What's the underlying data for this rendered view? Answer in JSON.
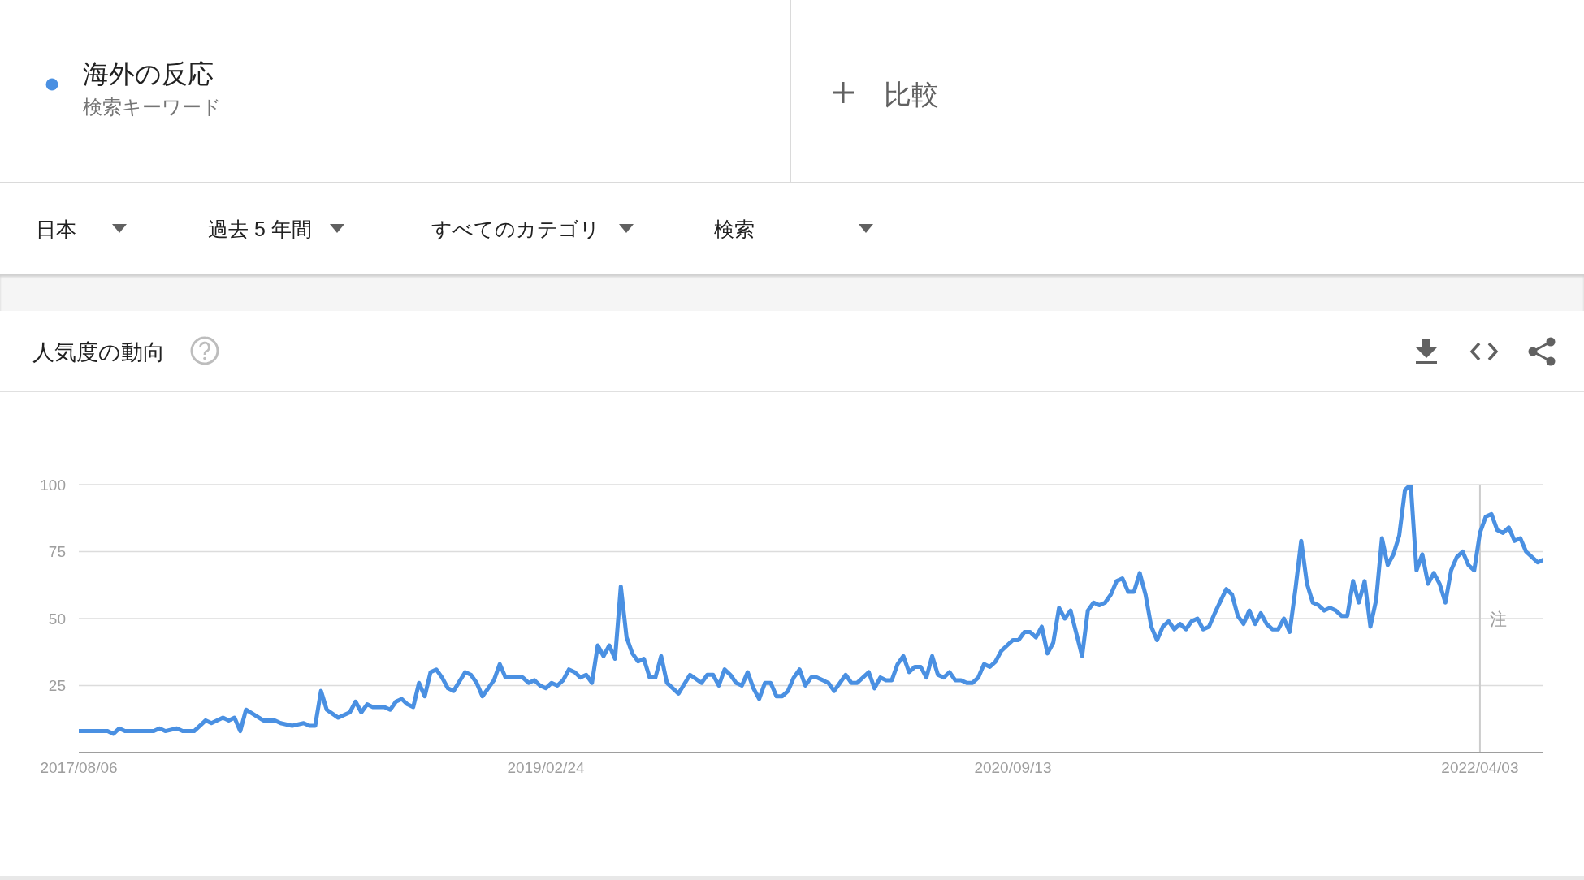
{
  "chart_data": {
    "type": "line",
    "title": "人気度の動向",
    "annotations": [
      "検索キーワード",
      "比較",
      "日本",
      "過去 5 年間",
      "すべてのカテゴリ",
      "検索"
    ],
    "x": [
      "2017-08-06",
      "2017-09-10",
      "2017-09-17",
      "2017-09-24",
      "2017-10-01",
      "2017-11-05",
      "2017-11-12",
      "2017-11-19",
      "2017-12-03",
      "2017-12-10",
      "2017-12-24",
      "2018-01-07",
      "2018-01-14",
      "2018-01-28",
      "2018-02-04",
      "2018-02-11",
      "2018-02-18",
      "2018-02-25",
      "2018-03-18",
      "2018-04-01",
      "2018-04-08",
      "2018-04-22",
      "2018-05-06",
      "2018-05-13",
      "2018-05-20",
      "2018-05-27",
      "2018-06-03",
      "2018-06-17",
      "2018-07-01",
      "2018-07-08",
      "2018-07-15",
      "2018-07-22",
      "2018-07-29",
      "2018-08-12",
      "2018-08-19",
      "2018-08-26",
      "2018-09-02",
      "2018-09-09",
      "2018-09-16",
      "2018-09-23",
      "2018-09-30",
      "2018-10-07",
      "2018-10-14",
      "2018-10-21",
      "2018-10-28",
      "2018-11-04",
      "2018-11-18",
      "2018-11-25",
      "2018-12-02",
      "2018-12-09",
      "2018-12-23",
      "2018-12-30",
      "2019-01-06",
      "2019-01-13",
      "2019-01-20",
      "2019-01-27",
      "2019-02-03",
      "2019-02-10",
      "2019-02-17",
      "2019-02-24",
      "2019-03-03",
      "2019-03-10",
      "2019-03-17",
      "2019-03-24",
      "2019-03-31",
      "2019-04-07",
      "2019-04-14",
      "2019-04-21",
      "2019-04-28",
      "2019-05-05",
      "2019-05-12",
      "2019-05-19",
      "2019-05-26",
      "2019-06-02",
      "2019-06-09",
      "2019-06-16",
      "2019-06-23",
      "2019-06-30",
      "2019-07-07",
      "2019-07-14",
      "2019-07-21",
      "2019-08-04",
      "2019-08-18",
      "2019-09-01",
      "2019-09-08",
      "2019-09-15",
      "2019-09-22",
      "2019-09-29",
      "2019-10-06",
      "2019-10-13",
      "2019-10-20",
      "2019-10-27",
      "2019-11-03",
      "2019-11-10",
      "2019-11-17",
      "2019-11-24",
      "2019-12-01",
      "2019-12-08",
      "2019-12-15",
      "2019-12-22",
      "2019-12-29",
      "2020-01-05",
      "2020-01-12",
      "2020-01-19",
      "2020-02-02",
      "2020-02-09",
      "2020-02-16",
      "2020-02-23",
      "2020-03-01",
      "2020-03-08",
      "2020-03-22",
      "2020-03-29",
      "2020-04-05",
      "2020-04-12",
      "2020-04-19",
      "2020-04-26",
      "2020-05-03",
      "2020-05-10",
      "2020-05-17",
      "2020-05-24",
      "2020-05-31",
      "2020-06-07",
      "2020-06-14",
      "2020-06-21",
      "2020-06-28",
      "2020-07-05",
      "2020-07-12",
      "2020-07-19",
      "2020-07-26",
      "2020-08-02",
      "2020-08-09",
      "2020-08-16",
      "2020-08-23",
      "2020-08-30",
      "2020-09-06",
      "2020-09-13",
      "2020-09-20",
      "2020-09-27",
      "2020-10-04",
      "2020-10-11",
      "2020-10-18",
      "2020-10-25",
      "2020-11-01",
      "2020-11-08",
      "2020-11-15",
      "2020-11-22",
      "2020-12-06",
      "2020-12-13",
      "2020-12-20",
      "2020-12-27",
      "2021-01-03",
      "2021-01-10",
      "2021-01-17",
      "2021-01-24",
      "2021-01-31",
      "2021-02-07",
      "2021-02-14",
      "2021-02-21",
      "2021-02-28",
      "2021-03-07",
      "2021-03-14",
      "2021-03-21",
      "2021-03-28",
      "2021-04-04",
      "2021-04-11",
      "2021-04-18",
      "2021-04-25",
      "2021-05-02",
      "2021-05-09",
      "2021-05-16",
      "2021-05-30",
      "2021-06-06",
      "2021-06-13",
      "2021-06-20",
      "2021-06-27",
      "2021-07-04",
      "2021-07-11",
      "2021-07-18",
      "2021-07-25",
      "2021-08-01",
      "2021-08-08",
      "2021-08-15",
      "2021-08-22",
      "2021-08-29",
      "2021-09-05",
      "2021-09-12",
      "2021-09-19",
      "2021-09-26",
      "2021-10-03",
      "2021-10-10",
      "2021-10-17",
      "2021-10-24",
      "2021-10-31",
      "2021-11-07",
      "2021-11-14",
      "2021-11-21",
      "2021-11-28",
      "2021-12-05",
      "2021-12-12",
      "2021-12-19",
      "2021-12-26",
      "2022-01-02",
      "2022-01-09",
      "2022-01-16",
      "2022-01-23",
      "2022-01-30",
      "2022-02-06",
      "2022-02-13",
      "2022-02-20",
      "2022-02-27",
      "2022-03-06",
      "2022-03-13",
      "2022-03-20",
      "2022-03-27",
      "2022-04-03",
      "2022-04-10",
      "2022-04-17",
      "2022-04-24",
      "2022-05-01",
      "2022-05-08",
      "2022-05-15",
      "2022-05-22",
      "2022-05-29",
      "2022-06-12",
      "2022-06-19"
    ],
    "series": [
      {
        "name": "海外の反応",
        "color": "#4a90e2",
        "values": [
          8,
          8,
          7,
          9,
          8,
          8,
          9,
          8,
          9,
          8,
          8,
          12,
          11,
          13,
          12,
          13,
          8,
          16,
          12,
          12,
          11,
          10,
          11,
          10,
          10,
          23,
          16,
          13,
          15,
          19,
          15,
          18,
          17,
          17,
          16,
          19,
          20,
          18,
          17,
          26,
          21,
          30,
          31,
          28,
          24,
          23,
          30,
          29,
          26,
          21,
          27,
          33,
          28,
          28,
          28,
          28,
          26,
          27,
          25,
          24,
          26,
          25,
          27,
          31,
          30,
          28,
          29,
          26,
          40,
          36,
          40,
          35,
          62,
          43,
          37,
          34,
          35,
          28,
          28,
          36,
          26,
          22,
          29,
          26,
          29,
          29,
          25,
          31,
          29,
          26,
          25,
          30,
          24,
          20,
          26,
          26,
          21,
          21,
          23,
          28,
          31,
          25,
          28,
          28,
          26,
          23,
          26,
          29,
          26,
          26,
          30,
          24,
          28,
          27,
          27,
          33,
          36,
          30,
          32,
          32,
          28,
          36,
          29,
          28,
          30,
          27,
          27,
          26,
          26,
          28,
          33,
          32,
          34,
          38,
          40,
          42,
          42,
          45,
          45,
          43,
          47,
          37,
          41,
          54,
          50,
          53,
          36,
          53,
          56,
          55,
          56,
          59,
          64,
          65,
          60,
          60,
          67,
          59,
          47,
          42,
          47,
          49,
          46,
          48,
          46,
          49,
          50,
          46,
          47,
          52,
          61,
          59,
          51,
          48,
          53,
          48,
          52,
          48,
          46,
          46,
          50,
          45,
          61,
          79,
          63,
          56,
          55,
          53,
          54,
          53,
          51,
          51,
          64,
          56,
          64,
          47,
          57,
          80,
          70,
          74,
          81,
          98,
          100,
          68,
          74,
          63,
          67,
          63,
          56,
          68,
          73,
          75,
          70,
          68,
          82,
          88,
          89,
          83,
          82,
          84,
          79,
          80,
          75,
          71,
          72
        ]
      }
    ],
    "xlim": [
      "2017-08-06",
      "2022-06-19"
    ],
    "xticks": [
      {
        "value": "2017-08-06",
        "label": "2017/08/06"
      },
      {
        "value": "2019-02-24",
        "label": "2019/02/24"
      },
      {
        "value": "2020-09-13",
        "label": "2020/09/13"
      },
      {
        "value": "2022-04-03",
        "label": "2022/04/03"
      }
    ],
    "ylim": [
      0,
      100
    ],
    "yticks": [
      25,
      50,
      75,
      100
    ],
    "grid": "y",
    "legend": "top left",
    "ref_lines": [
      {
        "axis": "x",
        "value": "2022-04-03",
        "label": "注",
        "color": "#cccccc"
      }
    ]
  }
}
